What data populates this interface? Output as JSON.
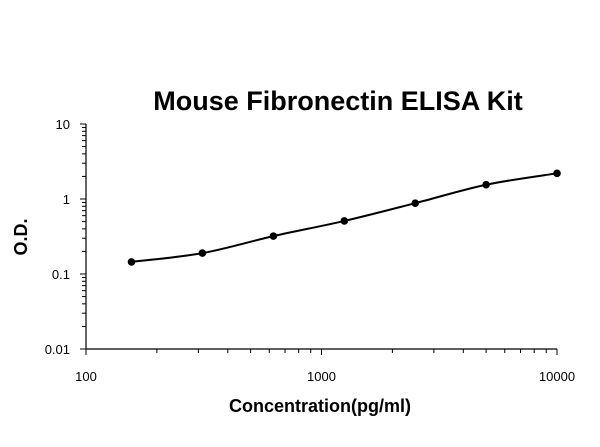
{
  "chart_data": {
    "type": "scatter",
    "title": "Mouse Fibronectin ELISA Kit",
    "xlabel": "Concentration(pg/ml)",
    "ylabel": "O.D.",
    "xscale": "log",
    "yscale": "log",
    "xlim": [
      100,
      10000
    ],
    "ylim": [
      0.01,
      10
    ],
    "xticks": [
      "100",
      "1000",
      "10000"
    ],
    "yticks": [
      "0.01",
      "0.1",
      "1",
      "10"
    ],
    "grid": false,
    "legend": "none",
    "series": [
      {
        "x": [
          156,
          312,
          625,
          1250,
          2500,
          5000,
          10000
        ],
        "y": [
          0.145,
          0.19,
          0.32,
          0.51,
          0.88,
          1.55,
          2.2
        ]
      }
    ],
    "fit_curve": true
  }
}
